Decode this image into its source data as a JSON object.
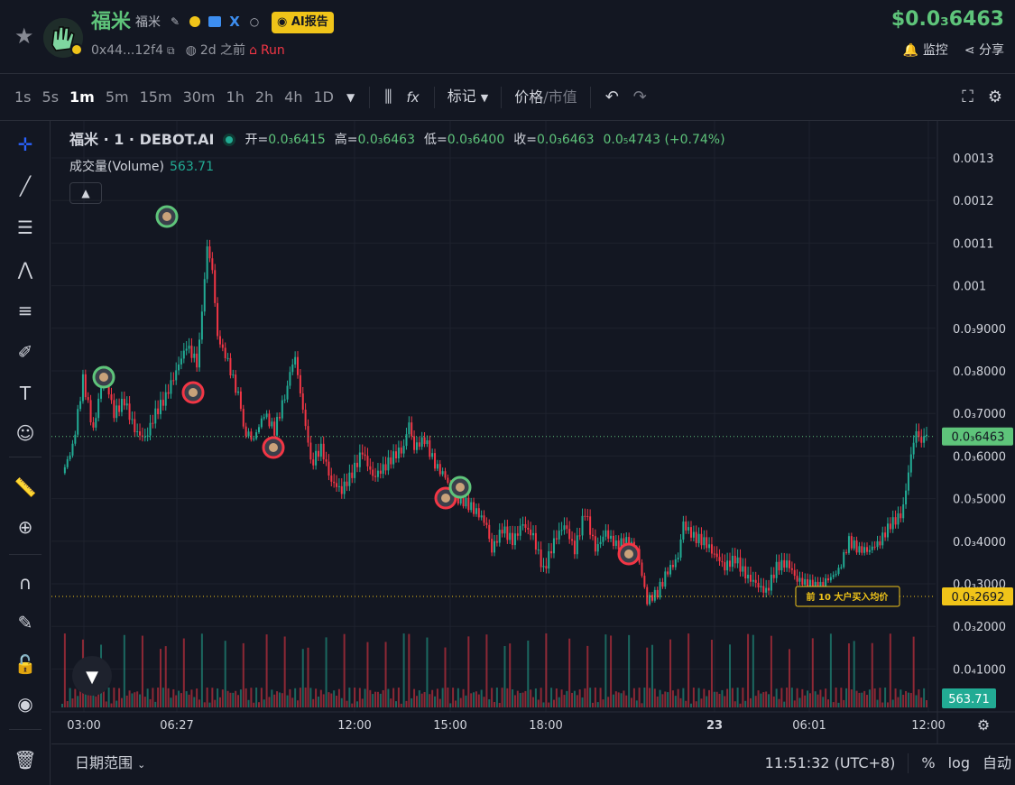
{
  "header": {
    "token_name": "福米",
    "token_sub": "福米",
    "ai_button": "AI报告",
    "address": "0x44...12f4",
    "age": "2d 之前",
    "run_label": "Run",
    "price": "$0.0₃6463",
    "watch_label": "监控",
    "share_label": "分享"
  },
  "toolbar": {
    "timeframes": [
      "1s",
      "5s",
      "1m",
      "5m",
      "15m",
      "30m",
      "1h",
      "2h",
      "4h",
      "1D"
    ],
    "active_timeframe": "1m",
    "mark_label": "标记",
    "price_label": "价格",
    "divider": "/",
    "mcap_label": "市值",
    "fx_label": "fx"
  },
  "legend": {
    "symbol": "福米 · 1 · DEBOT.AI",
    "open_label": "开=",
    "open": "0.0₃6415",
    "high_label": "高=",
    "high": "0.0₃6463",
    "low_label": "低=",
    "low": "0.0₃6400",
    "close_label": "收=",
    "close": "0.0₃6463",
    "change": "0.0₅4743 (+0.74%)",
    "volume_label": "成交量(Volume)",
    "volume": "563.71"
  },
  "chart_data": {
    "type": "candlestick",
    "y_axis_labels": [
      "0.0013",
      "0.0012",
      "0.0011",
      "0.001",
      "0.0₃9000",
      "0.0₃8000",
      "0.0₃7000",
      "0.0₃6000",
      "0.0₃5000",
      "0.0₃4000",
      "0.0₃3000",
      "0.0₃2000",
      "0.0₄1000"
    ],
    "x_axis_labels": [
      "03:00",
      "06:27",
      "12:00",
      "15:00",
      "18:00",
      "23",
      "06:01",
      "12:00"
    ],
    "current_price_label": "0.0₃6463",
    "avg_price_label": "0.0₃2692",
    "avg_price_annotation": "前 10 大户买入均价",
    "volume_axis_label": "563.71",
    "price_path": [
      [
        0,
        0.00056
      ],
      [
        2,
        0.00062
      ],
      [
        4,
        0.00078
      ],
      [
        6,
        0.00066
      ],
      [
        8,
        0.0008
      ],
      [
        10,
        0.0007
      ],
      [
        12,
        0.00073
      ],
      [
        14,
        0.00066
      ],
      [
        16,
        0.00064
      ],
      [
        18,
        0.0007
      ],
      [
        20,
        0.00074
      ],
      [
        22,
        0.0008
      ],
      [
        24,
        0.00086
      ],
      [
        26,
        0.00082
      ],
      [
        27,
        0.00095
      ],
      [
        28,
        0.0011
      ],
      [
        29,
        0.00104
      ],
      [
        30,
        0.00088
      ],
      [
        32,
        0.00082
      ],
      [
        34,
        0.00074
      ],
      [
        35,
        0.00066
      ],
      [
        37,
        0.00064
      ],
      [
        39,
        0.0007
      ],
      [
        41,
        0.00066
      ],
      [
        43,
        0.00074
      ],
      [
        44,
        0.0008
      ],
      [
        45,
        0.00083
      ],
      [
        46,
        0.00074
      ],
      [
        47,
        0.00066
      ],
      [
        48,
        0.00058
      ],
      [
        50,
        0.00062
      ],
      [
        52,
        0.00054
      ],
      [
        54,
        0.00052
      ],
      [
        56,
        0.00056
      ],
      [
        58,
        0.00061
      ],
      [
        60,
        0.00055
      ],
      [
        62,
        0.00057
      ],
      [
        64,
        0.0006
      ],
      [
        66,
        0.00062
      ],
      [
        67,
        0.00068
      ],
      [
        68,
        0.00062
      ],
      [
        70,
        0.00064
      ],
      [
        72,
        0.00058
      ],
      [
        74,
        0.00055
      ],
      [
        76,
        0.0005
      ],
      [
        78,
        0.00049
      ],
      [
        80,
        0.00047
      ],
      [
        82,
        0.00044
      ],
      [
        83,
        0.00038
      ],
      [
        85,
        0.00043
      ],
      [
        87,
        0.0004
      ],
      [
        89,
        0.00044
      ],
      [
        91,
        0.00041
      ],
      [
        93,
        0.00033
      ],
      [
        95,
        0.0004
      ],
      [
        97,
        0.00044
      ],
      [
        99,
        0.00038
      ],
      [
        101,
        0.00047
      ],
      [
        103,
        0.00038
      ],
      [
        105,
        0.00042
      ],
      [
        107,
        0.00039
      ],
      [
        109,
        0.0004
      ],
      [
        111,
        0.00038
      ],
      [
        113,
        0.00026
      ],
      [
        115,
        0.00028
      ],
      [
        117,
        0.00033
      ],
      [
        119,
        0.00036
      ],
      [
        120,
        0.00044
      ],
      [
        122,
        0.00041
      ],
      [
        124,
        0.0004
      ],
      [
        126,
        0.00037
      ],
      [
        128,
        0.00034
      ],
      [
        130,
        0.00036
      ],
      [
        132,
        0.00032
      ],
      [
        134,
        0.0003
      ],
      [
        136,
        0.00028
      ],
      [
        138,
        0.00034
      ],
      [
        140,
        0.00035
      ],
      [
        142,
        0.00031
      ],
      [
        144,
        0.0003
      ],
      [
        146,
        0.00029
      ],
      [
        148,
        0.00031
      ],
      [
        150,
        0.00033
      ],
      [
        152,
        0.0004
      ],
      [
        154,
        0.00038
      ],
      [
        156,
        0.00038
      ],
      [
        158,
        0.0004
      ],
      [
        160,
        0.00044
      ],
      [
        162,
        0.00046
      ],
      [
        163,
        0.00052
      ],
      [
        164,
        0.0006
      ],
      [
        165,
        0.00065
      ],
      [
        166,
        0.00062
      ],
      [
        167,
        0.00065
      ]
    ]
  },
  "bottombar": {
    "range_label": "日期范围",
    "time": "11:51:32 (UTC+8)",
    "percent": "%",
    "log": "log",
    "auto": "自动"
  }
}
